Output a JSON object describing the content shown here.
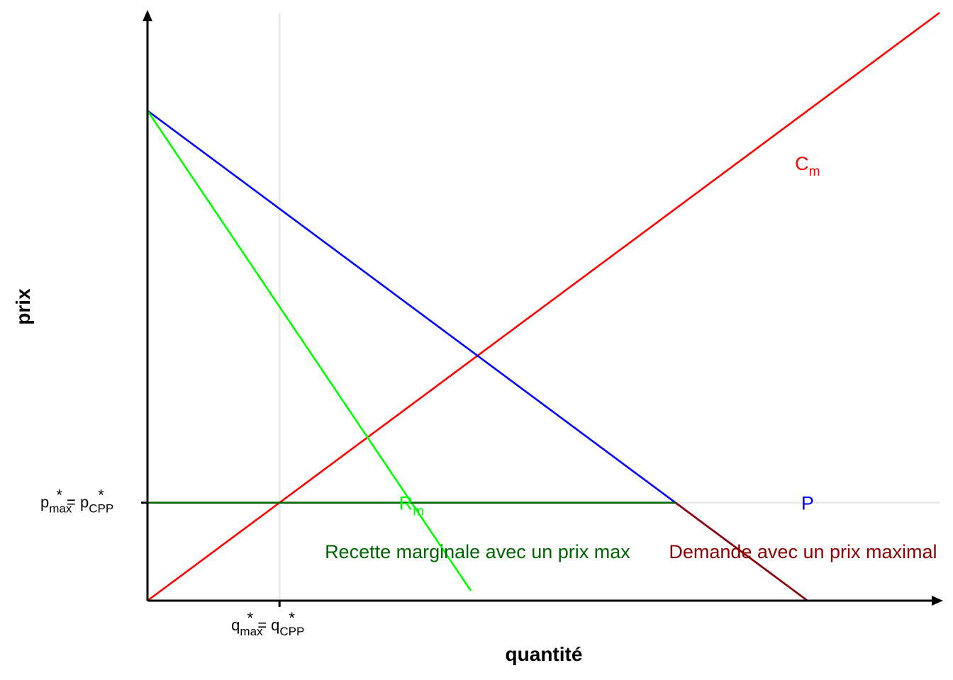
{
  "chart_data": {
    "type": "line",
    "title": "",
    "xlabel": "quantité",
    "ylabel": "prix",
    "xlim": [
      0,
      12
    ],
    "ylim": [
      0,
      9
    ],
    "grid": false,
    "reference_lines": [
      {
        "orientation": "vertical",
        "value": 2,
        "color": "#EBEBEB"
      },
      {
        "orientation": "horizontal",
        "value": 1.5,
        "color": "#EBEBEB"
      }
    ],
    "x_ticks": [
      {
        "value": 2,
        "main": "q",
        "sub1": "max",
        "star1": "*",
        "eq": " = q",
        "sub2": "CPP",
        "star2": "*"
      }
    ],
    "y_ticks": [
      {
        "value": 1.5,
        "main": "p",
        "sub1": "max",
        "star1": "*",
        "eq": " = p",
        "sub2": "CPP",
        "star2": "*"
      }
    ],
    "series": [
      {
        "name": "Cm",
        "label_main": "C",
        "label_sub": "m",
        "color": "#FF0000",
        "x": [
          0,
          12
        ],
        "y": [
          0,
          9
        ],
        "label_at": [
          10,
          6.7
        ]
      },
      {
        "name": "P",
        "label_main": "P",
        "label_sub": "",
        "color": "#0000FF",
        "x": [
          0,
          10
        ],
        "y": [
          7.5,
          0
        ],
        "label_at": [
          10,
          1.5
        ]
      },
      {
        "name": "Rm",
        "label_main": "R",
        "label_sub": "m",
        "color": "#00FF00",
        "x": [
          0,
          4.9
        ],
        "y": [
          7.5,
          0.15
        ],
        "label_at": [
          4,
          1.5
        ]
      },
      {
        "name": "",
        "label_main": "",
        "label_sub": "",
        "color": "#006400",
        "x": [
          0,
          8
        ],
        "y": [
          1.5,
          1.5
        ]
      },
      {
        "name": "",
        "label_main": "",
        "label_sub": "",
        "color": "#8B0000",
        "x": [
          8,
          10
        ],
        "y": [
          1.5,
          0
        ]
      }
    ],
    "annotations": [
      {
        "text": "Recette marginale avec un prix max",
        "color": "#006400",
        "x": 5,
        "y": 0.75
      },
      {
        "text": "Demande avec un prix maximal",
        "color": "#8B0000",
        "x": 7.9,
        "y": 0.75
      }
    ]
  }
}
